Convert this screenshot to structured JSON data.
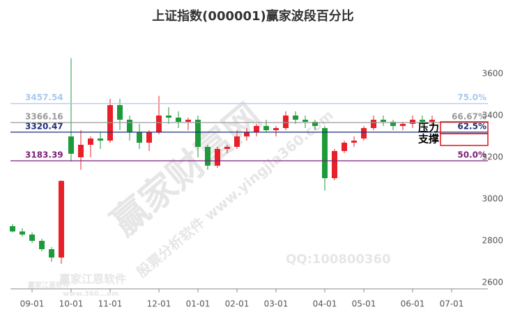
{
  "chart_data": {
    "type": "candlestick",
    "title": "上证指数(000001)赢家波段百分比",
    "categories": [
      null,
      null,
      "09-01",
      null,
      null,
      null,
      "10-01",
      null,
      null,
      null,
      "11-01",
      null,
      null,
      null,
      null,
      "12-01",
      null,
      null,
      null,
      "01-01",
      null,
      null,
      null,
      "02-01",
      null,
      null,
      null,
      "03-01",
      null,
      null,
      null,
      null,
      "04-01",
      null,
      null,
      null,
      "05-01",
      null,
      null,
      null,
      null,
      "06-01",
      null,
      null,
      null,
      "07-01"
    ],
    "open": [
      2870,
      2845,
      2830,
      2800,
      2760,
      2720,
      3300,
      3200,
      3260,
      3290,
      3280,
      3450,
      3380,
      3320,
      3270,
      3320,
      3400,
      3390,
      3370,
      3380,
      3250,
      3160,
      3240,
      3250,
      3300,
      3320,
      3350,
      3330,
      3340,
      3400,
      3380,
      3370,
      3340,
      3100,
      3230,
      3270,
      3290,
      3340,
      3380,
      3370,
      3350,
      3360,
      3380,
      3370,
      null,
      null
    ],
    "high": [
      2880,
      2860,
      2840,
      2810,
      2770,
      3090,
      3674,
      3330,
      3300,
      3320,
      3480,
      3480,
      3400,
      3360,
      3330,
      3494,
      3440,
      3420,
      3390,
      3400,
      3260,
      3250,
      3260,
      3330,
      3340,
      3360,
      3380,
      3350,
      3420,
      3420,
      3400,
      3380,
      3350,
      3240,
      3280,
      3300,
      3350,
      3400,
      3400,
      3380,
      3370,
      3400,
      3400,
      3400,
      null,
      null
    ],
    "low": [
      2840,
      2820,
      2790,
      2750,
      2700,
      2690,
      3180,
      3140,
      3200,
      3240,
      3270,
      3330,
      3280,
      3240,
      3230,
      3310,
      3360,
      3340,
      3330,
      3200,
      3140,
      3150,
      3220,
      3240,
      3280,
      3300,
      3320,
      3300,
      3330,
      3360,
      3340,
      3330,
      3040,
      3090,
      3220,
      3250,
      3280,
      3330,
      3350,
      3330,
      3330,
      3340,
      3350,
      3350,
      null,
      null
    ],
    "close": [
      2845,
      2830,
      2800,
      2760,
      2720,
      3087,
      3217,
      3260,
      3290,
      3280,
      3450,
      3380,
      3320,
      3270,
      3320,
      3400,
      3390,
      3370,
      3380,
      3250,
      3160,
      3240,
      3250,
      3300,
      3320,
      3350,
      3330,
      3340,
      3400,
      3380,
      3370,
      3350,
      3100,
      3230,
      3270,
      3280,
      3340,
      3380,
      3370,
      3350,
      3360,
      3380,
      3370,
      3380,
      null,
      null
    ],
    "up_color": "#e8202a",
    "down_color": "#1d9a3a",
    "ylim": [
      2570,
      3820
    ],
    "yticks": [
      2600,
      2800,
      3000,
      3200,
      3400,
      3600
    ],
    "levels": [
      {
        "value": 3457.54,
        "label": "75.0%",
        "color": "#a9c9ef"
      },
      {
        "value": 3366.16,
        "label": "66.67%",
        "color": "#9a9a9a"
      },
      {
        "value": 3320.47,
        "label": "62.5%",
        "color": "#1f2d7a"
      },
      {
        "value": 3183.39,
        "label": "50.0%",
        "color": "#7a1f7a"
      }
    ],
    "annotations": [
      "压力",
      "支撑"
    ],
    "watermarks": [
      "赢家财富网",
      "赢家江恩软件",
      "股票分析软件 www.yingjia360.com",
      "QQ:100800360",
      "赢家江恩软件",
      "www.360...om"
    ]
  }
}
